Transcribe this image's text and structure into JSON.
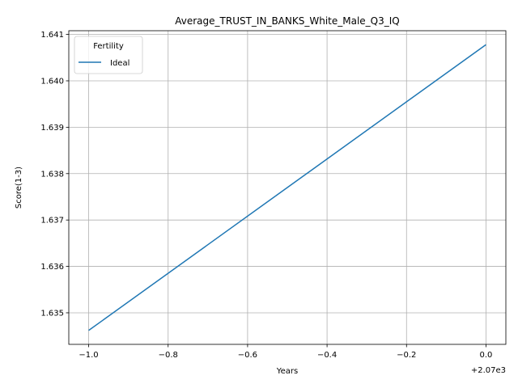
{
  "chart_data": {
    "type": "line",
    "title": "Average_TRUST_IN_BANKS_White_Male_Q3_IQ",
    "xlabel": "Years",
    "ylabel": "Score(1-3)",
    "x_offset_label": "+2.07e3",
    "x": [
      2069,
      2070
    ],
    "x_tick_values": [
      2069.0,
      2069.2,
      2069.4,
      2069.6,
      2069.8,
      2070.0
    ],
    "x_tick_labels": [
      "−1.0",
      "−0.8",
      "−0.6",
      "−0.4",
      "−0.2",
      "0.0"
    ],
    "y_tick_values": [
      1.635,
      1.636,
      1.637,
      1.638,
      1.639,
      1.64,
      1.641
    ],
    "y_tick_labels": [
      "1.635",
      "1.636",
      "1.637",
      "1.638",
      "1.639",
      "1.640",
      "1.641"
    ],
    "xlim": [
      2068.95,
      2070.05
    ],
    "ylim": [
      1.63432,
      1.64108
    ],
    "grid": true,
    "legend": {
      "title": "Fertility",
      "position": "top-left"
    },
    "series": [
      {
        "name": "Ideal",
        "color": "#1f77b4",
        "values": [
          1.63462,
          1.64078
        ]
      }
    ]
  }
}
